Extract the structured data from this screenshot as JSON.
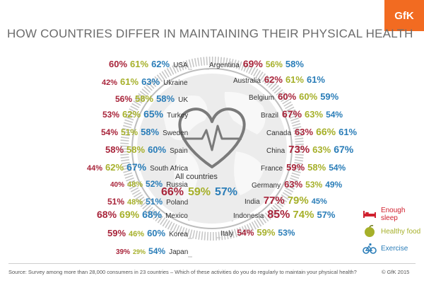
{
  "title": "HOW COUNTRIES DIFFER IN MAINTAINING THEIR PHYSICAL HEALTH",
  "brand": "GfK",
  "colors": {
    "sleep": "#a8243a",
    "food": "#a6b02a",
    "exercise": "#2a7db8",
    "ring": "#b7b7b7",
    "globe": "#dcdcdc"
  },
  "chart_data": {
    "type": "table",
    "series_order": [
      "Enough sleep",
      "Healthy food",
      "Exercise"
    ],
    "all_countries": {
      "label": "All countries",
      "values": [
        "66%",
        "59%",
        "57%"
      ]
    },
    "left": [
      {
        "country": "USA",
        "values": [
          "60%",
          "61%",
          "62%"
        ]
      },
      {
        "country": "Ukraine",
        "values": [
          "42%",
          "61%",
          "63%"
        ]
      },
      {
        "country": "UK",
        "values": [
          "56%",
          "58%",
          "58%"
        ]
      },
      {
        "country": "Turkey",
        "values": [
          "53%",
          "62%",
          "65%"
        ]
      },
      {
        "country": "Sweden",
        "values": [
          "54%",
          "51%",
          "58%"
        ]
      },
      {
        "country": "Spain",
        "values": [
          "58%",
          "58%",
          "60%"
        ]
      },
      {
        "country": "South Africa",
        "values": [
          "44%",
          "62%",
          "67%"
        ]
      },
      {
        "country": "Russia",
        "values": [
          "40%",
          "48%",
          "52%"
        ]
      },
      {
        "country": "Poland",
        "values": [
          "51%",
          "48%",
          "51%"
        ]
      },
      {
        "country": "Mexico",
        "values": [
          "68%",
          "69%",
          "68%"
        ]
      },
      {
        "country": "Korea",
        "values": [
          "59%",
          "46%",
          "60%"
        ]
      },
      {
        "country": "Japan",
        "values": [
          "39%",
          "29%",
          "54%"
        ]
      }
    ],
    "right": [
      {
        "country": "Argentina",
        "values": [
          "69%",
          "56%",
          "58%"
        ]
      },
      {
        "country": "Australia",
        "values": [
          "62%",
          "61%",
          "61%"
        ]
      },
      {
        "country": "Belgium",
        "values": [
          "60%",
          "60%",
          "59%"
        ]
      },
      {
        "country": "Brazil",
        "values": [
          "67%",
          "63%",
          "54%"
        ]
      },
      {
        "country": "Canada",
        "values": [
          "63%",
          "66%",
          "61%"
        ]
      },
      {
        "country": "China",
        "values": [
          "73%",
          "63%",
          "67%"
        ]
      },
      {
        "country": "France",
        "values": [
          "59%",
          "58%",
          "54%"
        ]
      },
      {
        "country": "Germany",
        "values": [
          "63%",
          "53%",
          "49%"
        ]
      },
      {
        "country": "India",
        "values": [
          "77%",
          "79%",
          "45%"
        ]
      },
      {
        "country": "Indonesia",
        "values": [
          "85%",
          "74%",
          "57%"
        ]
      },
      {
        "country": "Italy",
        "values": [
          "54%",
          "59%",
          "53%"
        ]
      }
    ]
  },
  "legend": [
    {
      "label": "Enough sleep",
      "icon": "bed-icon"
    },
    {
      "label": "Healthy food",
      "icon": "apple-icon"
    },
    {
      "label": "Exercise",
      "icon": "bicycle-icon"
    }
  ],
  "footer": {
    "source": "Source: Survey among more than 28,000 consumers in 23 countries – Which of these activities do you do regularly to maintain your physical health?",
    "copyright": "© GfK 2015"
  }
}
